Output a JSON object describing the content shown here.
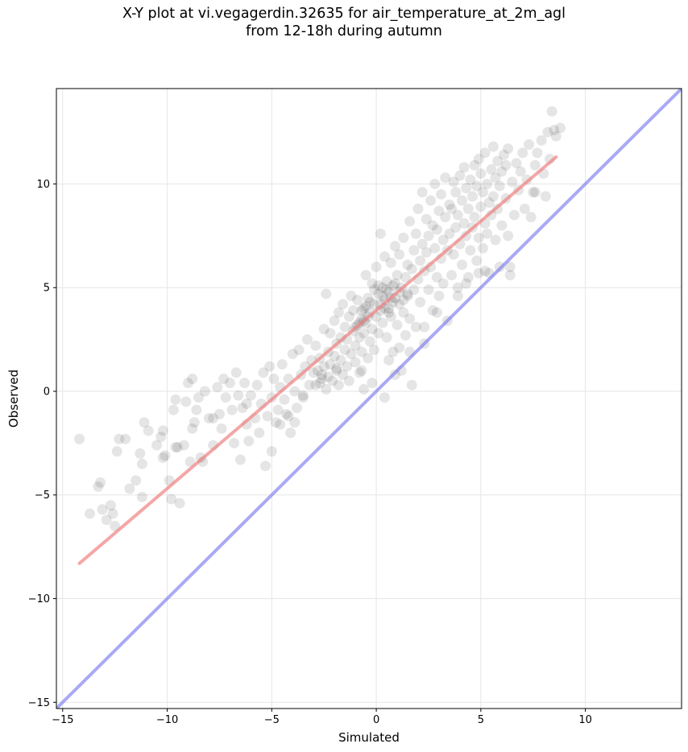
{
  "title": {
    "line1": "X-Y plot at vi.vegagerdin.32635 for air_temperature_at_2m_agl",
    "line2": "from 12-18h during autumn"
  },
  "chart_data": {
    "type": "scatter",
    "title": "X-Y plot at vi.vegagerdin.32635 for air_temperature_at_2m_agl from 12-18h during autumn",
    "xlabel": "Simulated",
    "ylabel": "Observed",
    "xlim": [
      -15.3,
      14.6
    ],
    "ylim": [
      -15.3,
      14.6
    ],
    "xticks": [
      -15,
      -10,
      -5,
      0,
      5,
      10
    ],
    "yticks": [
      -15,
      -10,
      -5,
      0,
      5,
      10
    ],
    "xtick_labels": [
      "−15",
      "−10",
      "−5",
      "0",
      "5",
      "10"
    ],
    "ytick_labels": [
      "−15",
      "−10",
      "−5",
      "0",
      "5",
      "10"
    ],
    "grid": true,
    "colors": {
      "points": "#000000",
      "fit_line": "#f08080",
      "identity_line": "#7b7bf0"
    },
    "fit_line": {
      "x": [
        -14.2,
        8.6
      ],
      "y": [
        -8.3,
        11.3
      ]
    },
    "identity_line": {
      "x": [
        -15.3,
        14.6
      ],
      "y": [
        -15.3,
        14.6
      ]
    },
    "points": [
      [
        -14.2,
        -2.3
      ],
      [
        -13.7,
        -5.9
      ],
      [
        -13.3,
        -4.6
      ],
      [
        -13.2,
        -4.4
      ],
      [
        -13.1,
        -5.7
      ],
      [
        -12.9,
        -6.2
      ],
      [
        -12.7,
        -5.5
      ],
      [
        -12.6,
        -5.9
      ],
      [
        -12.5,
        -6.5
      ],
      [
        -12.4,
        -2.9
      ],
      [
        -12.3,
        -2.3
      ],
      [
        -12.0,
        -2.3
      ],
      [
        -11.8,
        -4.7
      ],
      [
        -11.5,
        -4.3
      ],
      [
        -11.3,
        -3.0
      ],
      [
        -11.2,
        -3.5
      ],
      [
        -11.2,
        -5.1
      ],
      [
        -11.1,
        -1.5
      ],
      [
        -10.9,
        -1.9
      ],
      [
        -10.5,
        -2.6
      ],
      [
        -10.3,
        -2.2
      ],
      [
        -10.2,
        -1.9
      ],
      [
        -10.1,
        -3.1
      ],
      [
        -9.9,
        -4.3
      ],
      [
        -9.8,
        -5.2
      ],
      [
        -9.7,
        -0.9
      ],
      [
        -9.6,
        -0.4
      ],
      [
        -9.5,
        -2.7
      ],
      [
        -9.4,
        -5.4
      ],
      [
        -9.2,
        -2.6
      ],
      [
        -9.1,
        -0.5
      ],
      [
        -9.0,
        0.4
      ],
      [
        -8.9,
        -3.4
      ],
      [
        -8.8,
        0.6
      ],
      [
        -8.7,
        -1.5
      ],
      [
        -8.6,
        -0.9
      ],
      [
        -8.5,
        -0.3
      ],
      [
        -8.4,
        -3.2
      ],
      [
        -8.3,
        -3.4
      ],
      [
        -8.2,
        0.0
      ],
      [
        -8.0,
        -1.3
      ],
      [
        -7.8,
        -2.6
      ],
      [
        -7.6,
        0.2
      ],
      [
        -7.5,
        -1.1
      ],
      [
        -7.4,
        -1.8
      ],
      [
        -7.3,
        0.6
      ],
      [
        -7.2,
        -0.3
      ],
      [
        -7.0,
        0.4
      ],
      [
        -6.9,
        -0.9
      ],
      [
        -6.8,
        -2.5
      ],
      [
        -6.7,
        0.9
      ],
      [
        -6.6,
        -0.2
      ],
      [
        -6.5,
        -3.3
      ],
      [
        -6.4,
        -0.8
      ],
      [
        -6.3,
        0.4
      ],
      [
        -6.2,
        -1.6
      ],
      [
        -6.1,
        -2.4
      ],
      [
        -6.0,
        -0.2
      ],
      [
        -5.8,
        -1.3
      ],
      [
        -5.7,
        0.3
      ],
      [
        -5.6,
        -2.0
      ],
      [
        -5.5,
        -0.6
      ],
      [
        -5.4,
        0.9
      ],
      [
        -5.3,
        -3.6
      ],
      [
        -5.2,
        -1.2
      ],
      [
        -5.1,
        1.2
      ],
      [
        -5.0,
        -2.9
      ],
      [
        -5.0,
        -0.3
      ],
      [
        -4.9,
        0.6
      ],
      [
        -4.8,
        -1.5
      ],
      [
        -4.7,
        -0.9
      ],
      [
        -4.6,
        0.2
      ],
      [
        -4.5,
        1.3
      ],
      [
        -4.4,
        -0.4
      ],
      [
        -4.3,
        -1.1
      ],
      [
        -4.2,
        0.6
      ],
      [
        -4.1,
        -2.0
      ],
      [
        -4.0,
        1.8
      ],
      [
        -3.9,
        0.0
      ],
      [
        -3.8,
        -0.8
      ],
      [
        -3.7,
        2.0
      ],
      [
        -3.6,
        0.8
      ],
      [
        -3.5,
        -0.3
      ],
      [
        -3.4,
        1.2
      ],
      [
        -3.3,
        2.5
      ],
      [
        -3.2,
        0.3
      ],
      [
        -3.1,
        1.5
      ],
      [
        -3.0,
        0.9
      ],
      [
        -2.9,
        2.2
      ],
      [
        -2.8,
        1.0
      ],
      [
        -2.7,
        0.4
      ],
      [
        -2.7,
        1.6
      ],
      [
        -2.6,
        0.8
      ],
      [
        -2.5,
        3.0
      ],
      [
        -2.5,
        1.2
      ],
      [
        -2.4,
        0.1
      ],
      [
        -2.4,
        4.7
      ],
      [
        -2.3,
        1.9
      ],
      [
        -2.3,
        0.7
      ],
      [
        -2.2,
        1.3
      ],
      [
        -2.2,
        2.8
      ],
      [
        -2.1,
        0.5
      ],
      [
        -2.0,
        3.4
      ],
      [
        -2.0,
        1.7
      ],
      [
        -1.9,
        1.0
      ],
      [
        -1.9,
        2.3
      ],
      [
        -1.8,
        0.3
      ],
      [
        -1.8,
        3.8
      ],
      [
        -1.7,
        1.5
      ],
      [
        -1.7,
        2.6
      ],
      [
        -1.6,
        0.8
      ],
      [
        -1.6,
        4.2
      ],
      [
        -1.5,
        2.0
      ],
      [
        -1.5,
        3.1
      ],
      [
        -1.4,
        1.2
      ],
      [
        -1.4,
        2.5
      ],
      [
        -1.3,
        3.6
      ],
      [
        -1.3,
        0.5
      ],
      [
        -1.2,
        4.6
      ],
      [
        -1.2,
        1.8
      ],
      [
        -1.1,
        2.9
      ],
      [
        -1.1,
        3.9
      ],
      [
        -1.0,
        1.4
      ],
      [
        -1.0,
        2.2
      ],
      [
        -0.9,
        3.2
      ],
      [
        -0.9,
        4.4
      ],
      [
        -0.8,
        2.6
      ],
      [
        -0.8,
        0.9
      ],
      [
        -0.7,
        3.5
      ],
      [
        -0.7,
        1.9
      ],
      [
        -0.6,
        4.0
      ],
      [
        -0.6,
        2.8
      ],
      [
        -0.5,
        5.6
      ],
      [
        -0.5,
        3.3
      ],
      [
        -0.4,
        1.6
      ],
      [
        -0.4,
        4.5
      ],
      [
        -0.3,
        2.4
      ],
      [
        -0.3,
        3.8
      ],
      [
        -0.2,
        5.2
      ],
      [
        -0.2,
        3.0
      ],
      [
        -0.1,
        4.2
      ],
      [
        -0.1,
        2.0
      ],
      [
        0.0,
        3.6
      ],
      [
        0.0,
        6.0
      ],
      [
        0.1,
        4.7
      ],
      [
        0.1,
        2.8
      ],
      [
        0.2,
        3.9
      ],
      [
        0.2,
        7.6
      ],
      [
        0.3,
        5.0
      ],
      [
        0.3,
        3.3
      ],
      [
        0.4,
        4.4
      ],
      [
        0.4,
        6.5
      ],
      [
        0.5,
        2.6
      ],
      [
        0.5,
        5.3
      ],
      [
        0.6,
        4.0
      ],
      [
        0.6,
        4.8
      ],
      [
        0.7,
        3.6
      ],
      [
        0.7,
        6.2
      ],
      [
        0.8,
        5.1
      ],
      [
        0.8,
        1.9
      ],
      [
        0.9,
        4.5
      ],
      [
        0.9,
        7.0
      ],
      [
        1.0,
        3.2
      ],
      [
        1.0,
        5.6
      ],
      [
        1.1,
        4.2
      ],
      [
        1.1,
        6.6
      ],
      [
        1.2,
        1.0
      ],
      [
        1.2,
        5.0
      ],
      [
        1.3,
        3.8
      ],
      [
        1.3,
        7.4
      ],
      [
        1.4,
        5.5
      ],
      [
        1.4,
        2.7
      ],
      [
        1.5,
        6.1
      ],
      [
        1.5,
        4.6
      ],
      [
        1.6,
        8.2
      ],
      [
        1.6,
        3.5
      ],
      [
        1.7,
        5.9
      ],
      [
        1.7,
        0.3
      ],
      [
        1.8,
        6.8
      ],
      [
        1.8,
        4.9
      ],
      [
        1.9,
        7.6
      ],
      [
        1.9,
        3.1
      ],
      [
        2.0,
        5.4
      ],
      [
        2.0,
        8.8
      ],
      [
        2.1,
        6.3
      ],
      [
        2.1,
        4.3
      ],
      [
        2.2,
        7.1
      ],
      [
        2.2,
        9.6
      ],
      [
        2.3,
        5.8
      ],
      [
        2.3,
        2.3
      ],
      [
        2.4,
        6.7
      ],
      [
        2.4,
        8.3
      ],
      [
        2.5,
        4.9
      ],
      [
        2.5,
        7.5
      ],
      [
        2.6,
        9.2
      ],
      [
        2.6,
        6.0
      ],
      [
        2.7,
        3.9
      ],
      [
        2.7,
        8.0
      ],
      [
        2.8,
        6.9
      ],
      [
        2.8,
        10.0
      ],
      [
        2.9,
        5.5
      ],
      [
        2.9,
        7.8
      ],
      [
        3.0,
        8.7
      ],
      [
        3.0,
        4.6
      ],
      [
        3.1,
        6.4
      ],
      [
        3.1,
        9.5
      ],
      [
        3.2,
        7.3
      ],
      [
        3.2,
        5.2
      ],
      [
        3.3,
        8.4
      ],
      [
        3.3,
        10.3
      ],
      [
        3.4,
        6.8
      ],
      [
        3.4,
        3.4
      ],
      [
        3.5,
        9.0
      ],
      [
        3.5,
        7.6
      ],
      [
        3.6,
        5.6
      ],
      [
        3.6,
        8.8
      ],
      [
        3.7,
        10.1
      ],
      [
        3.7,
        6.6
      ],
      [
        3.8,
        7.9
      ],
      [
        3.8,
        9.6
      ],
      [
        3.9,
        5.0
      ],
      [
        3.9,
        8.5
      ],
      [
        4.0,
        10.4
      ],
      [
        4.0,
        7.1
      ],
      [
        4.1,
        9.2
      ],
      [
        4.1,
        6.1
      ],
      [
        4.2,
        8.1
      ],
      [
        4.2,
        10.8
      ],
      [
        4.3,
        7.5
      ],
      [
        4.3,
        9.8
      ],
      [
        4.4,
        5.5
      ],
      [
        4.4,
        8.8
      ],
      [
        4.5,
        10.2
      ],
      [
        4.5,
        6.8
      ],
      [
        4.6,
        9.4
      ],
      [
        4.6,
        7.9
      ],
      [
        4.7,
        10.9
      ],
      [
        4.7,
        8.4
      ],
      [
        4.8,
        6.3
      ],
      [
        4.8,
        9.9
      ],
      [
        4.9,
        7.4
      ],
      [
        4.9,
        11.2
      ],
      [
        5.0,
        8.9
      ],
      [
        5.0,
        10.5
      ],
      [
        5.1,
        6.9
      ],
      [
        5.1,
        9.6
      ],
      [
        5.2,
        8.1
      ],
      [
        5.2,
        11.5
      ],
      [
        5.3,
        10.0
      ],
      [
        5.3,
        7.6
      ],
      [
        5.4,
        9.1
      ],
      [
        5.4,
        5.7
      ],
      [
        5.5,
        10.7
      ],
      [
        5.5,
        8.5
      ],
      [
        5.6,
        11.8
      ],
      [
        5.6,
        9.4
      ],
      [
        5.7,
        7.3
      ],
      [
        5.7,
        10.3
      ],
      [
        5.8,
        8.8
      ],
      [
        5.8,
        11.1
      ],
      [
        5.9,
        9.9
      ],
      [
        5.9,
        6.0
      ],
      [
        6.0,
        10.6
      ],
      [
        6.0,
        8.0
      ],
      [
        6.1,
        11.4
      ],
      [
        6.2,
        9.3
      ],
      [
        6.2,
        10.9
      ],
      [
        6.3,
        7.5
      ],
      [
        6.3,
        11.7
      ],
      [
        6.4,
        5.6
      ],
      [
        6.5,
        10.1
      ],
      [
        6.6,
        8.5
      ],
      [
        6.7,
        11.0
      ],
      [
        6.8,
        9.7
      ],
      [
        6.9,
        10.6
      ],
      [
        7.0,
        11.5
      ],
      [
        7.1,
        8.8
      ],
      [
        7.2,
        10.2
      ],
      [
        7.3,
        11.9
      ],
      [
        7.4,
        8.4
      ],
      [
        7.5,
        9.6
      ],
      [
        7.6,
        10.9
      ],
      [
        7.7,
        11.5
      ],
      [
        7.9,
        12.1
      ],
      [
        8.0,
        10.5
      ],
      [
        8.1,
        9.4
      ],
      [
        8.2,
        12.5
      ],
      [
        8.3,
        11.2
      ],
      [
        8.4,
        13.5
      ],
      [
        8.5,
        12.6
      ],
      [
        8.6,
        12.3
      ],
      [
        8.8,
        12.7
      ],
      [
        7.6,
        9.6
      ],
      [
        6.4,
        6.0
      ],
      [
        5.2,
        5.8
      ],
      [
        4.9,
        5.7
      ],
      [
        0.4,
        -0.3
      ],
      [
        0.9,
        0.8
      ],
      [
        -0.6,
        0.1
      ],
      [
        1.6,
        1.9
      ],
      [
        -3.9,
        -1.5
      ],
      [
        -4.2,
        -1.2
      ],
      [
        -4.6,
        -1.6
      ],
      [
        -3.5,
        -0.2
      ],
      [
        -2.9,
        0.3
      ],
      [
        -6.2,
        -0.6
      ],
      [
        -7.8,
        -1.3
      ],
      [
        -8.8,
        -1.8
      ],
      [
        -9.6,
        -2.7
      ],
      [
        -10.2,
        -3.2
      ],
      [
        -0.7,
        1.0
      ],
      [
        -1.9,
        1.1
      ],
      [
        -2.6,
        0.6
      ],
      [
        -0.2,
        0.4
      ],
      [
        0.6,
        1.5
      ],
      [
        1.1,
        2.1
      ],
      [
        2.3,
        3.1
      ],
      [
        2.9,
        3.8
      ],
      [
        3.9,
        4.6
      ],
      [
        4.3,
        5.2
      ],
      [
        -0.1,
        4.9
      ],
      [
        0.1,
        5.1
      ],
      [
        0.3,
        4.6
      ],
      [
        0.5,
        4.9
      ],
      [
        0.7,
        4.5
      ],
      [
        0.9,
        5.2
      ],
      [
        1.1,
        4.8
      ],
      [
        -0.3,
        4.3
      ],
      [
        -0.5,
        4.1
      ],
      [
        -0.7,
        3.9
      ],
      [
        0.2,
        4.2
      ],
      [
        0.4,
        4.0
      ],
      [
        0.6,
        3.8
      ],
      [
        0.8,
        4.3
      ],
      [
        -0.4,
        3.6
      ],
      [
        -0.6,
        3.4
      ],
      [
        -0.8,
        3.3
      ],
      [
        -1.0,
        3.1
      ],
      [
        1.3,
        4.4
      ],
      [
        1.5,
        4.7
      ]
    ]
  }
}
